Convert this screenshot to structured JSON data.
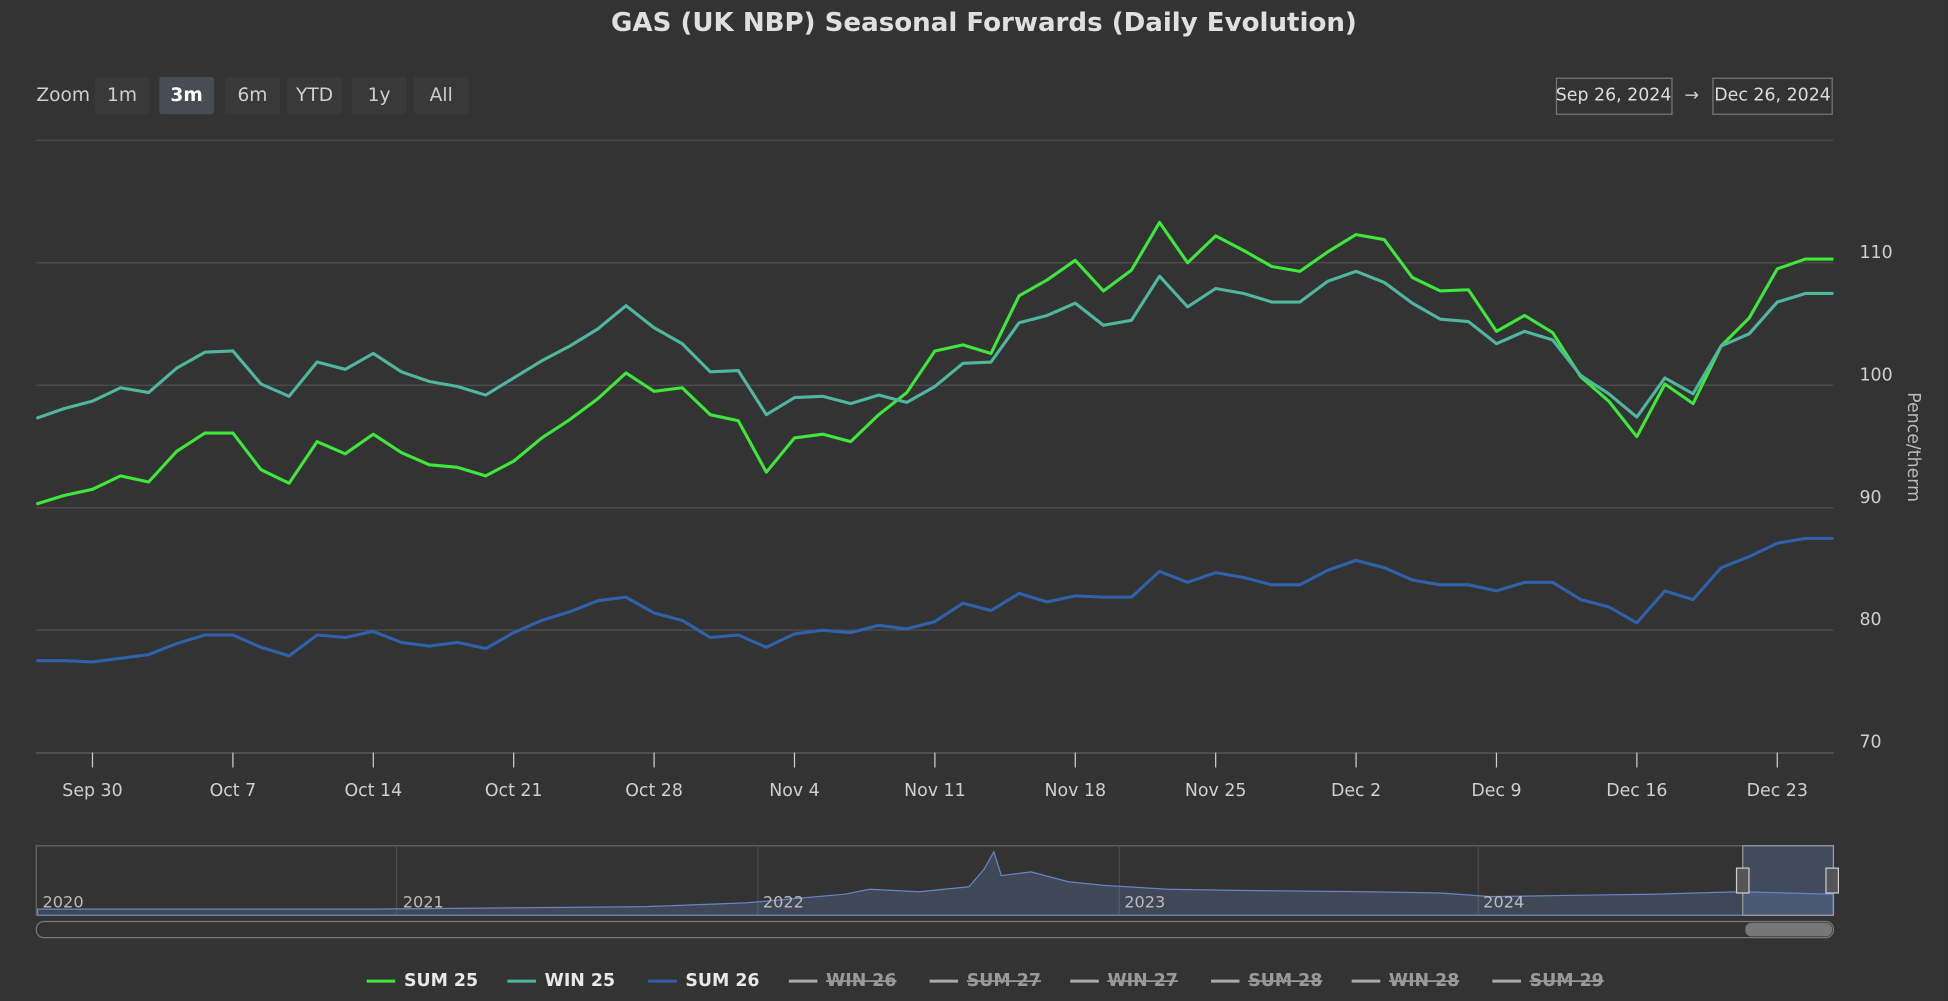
{
  "chart_data": {
    "type": "line",
    "title": "GAS (UK NBP) Seasonal Forwards (Daily Evolution)",
    "y_axis_label": "Pence/therm",
    "x": [
      "2024-09-26",
      "2024-09-27",
      "2024-09-30",
      "2024-10-01",
      "2024-10-02",
      "2024-10-03",
      "2024-10-04",
      "2024-10-07",
      "2024-10-08",
      "2024-10-09",
      "2024-10-10",
      "2024-10-11",
      "2024-10-14",
      "2024-10-15",
      "2024-10-16",
      "2024-10-17",
      "2024-10-18",
      "2024-10-21",
      "2024-10-22",
      "2024-10-23",
      "2024-10-24",
      "2024-10-25",
      "2024-10-28",
      "2024-10-29",
      "2024-10-30",
      "2024-10-31",
      "2024-11-01",
      "2024-11-04",
      "2024-11-05",
      "2024-11-06",
      "2024-11-07",
      "2024-11-08",
      "2024-11-11",
      "2024-11-12",
      "2024-11-13",
      "2024-11-14",
      "2024-11-15",
      "2024-11-18",
      "2024-11-19",
      "2024-11-20",
      "2024-11-21",
      "2024-11-22",
      "2024-11-25",
      "2024-11-26",
      "2024-11-27",
      "2024-11-28",
      "2024-11-29",
      "2024-12-02",
      "2024-12-03",
      "2024-12-04",
      "2024-12-05",
      "2024-12-06",
      "2024-12-09",
      "2024-12-10",
      "2024-12-11",
      "2024-12-12",
      "2024-12-13",
      "2024-12-16",
      "2024-12-17",
      "2024-12-18",
      "2024-12-19",
      "2024-12-20",
      "2024-12-23",
      "2024-12-24",
      "2024-12-26"
    ],
    "xticks": [
      {
        "value": "2024-09-30",
        "label": "Sep 30"
      },
      {
        "value": "2024-10-07",
        "label": "Oct 7"
      },
      {
        "value": "2024-10-14",
        "label": "Oct 14"
      },
      {
        "value": "2024-10-21",
        "label": "Oct 21"
      },
      {
        "value": "2024-10-28",
        "label": "Oct 28"
      },
      {
        "value": "2024-11-04",
        "label": "Nov 4"
      },
      {
        "value": "2024-11-11",
        "label": "Nov 11"
      },
      {
        "value": "2024-11-18",
        "label": "Nov 18"
      },
      {
        "value": "2024-11-25",
        "label": "Nov 25"
      },
      {
        "value": "2024-12-02",
        "label": "Dec 2"
      },
      {
        "value": "2024-12-09",
        "label": "Dec 9"
      },
      {
        "value": "2024-12-16",
        "label": "Dec 16"
      },
      {
        "value": "2024-12-23",
        "label": "Dec 23"
      }
    ],
    "ylim": [
      70,
      120
    ],
    "yticks": [
      70,
      80,
      90,
      100,
      110
    ],
    "grid": true,
    "series": [
      {
        "name": "SUM 25",
        "color": "#3ee83a",
        "visible": true,
        "values": [
          90.3,
          91.0,
          91.5,
          92.6,
          92.1,
          94.6,
          96.1,
          96.1,
          93.1,
          92.0,
          95.4,
          94.4,
          96.0,
          94.5,
          93.5,
          93.3,
          92.6,
          93.8,
          95.7,
          97.2,
          98.9,
          101.0,
          99.5,
          99.8,
          97.6,
          97.1,
          92.9,
          95.7,
          96.0,
          95.4,
          97.6,
          99.4,
          102.8,
          103.3,
          102.6,
          107.3,
          108.6,
          110.2,
          107.7,
          109.4,
          113.3,
          110.0,
          112.2,
          111.0,
          109.7,
          109.3,
          110.9,
          112.3,
          111.9,
          108.8,
          107.7,
          107.8,
          104.4,
          105.7,
          104.3,
          100.7,
          98.7,
          95.8,
          100.1,
          98.5,
          103.2,
          105.5,
          109.5,
          110.3,
          110.3
        ]
      },
      {
        "name": "WIN 25",
        "color": "#4fb7a0",
        "visible": true,
        "values": [
          97.3,
          98.1,
          98.7,
          99.8,
          99.4,
          101.4,
          102.7,
          102.8,
          100.1,
          99.1,
          101.9,
          101.3,
          102.6,
          101.1,
          100.3,
          99.9,
          99.2,
          100.6,
          102.0,
          103.2,
          104.6,
          106.5,
          104.7,
          103.4,
          101.1,
          101.2,
          97.6,
          99.0,
          99.1,
          98.5,
          99.2,
          98.6,
          99.9,
          101.8,
          101.9,
          105.1,
          105.7,
          106.7,
          104.9,
          105.3,
          108.9,
          106.4,
          107.9,
          107.5,
          106.8,
          106.8,
          108.5,
          109.3,
          108.4,
          106.7,
          105.4,
          105.2,
          103.4,
          104.4,
          103.7,
          100.8,
          99.3,
          97.4,
          100.6,
          99.3,
          103.2,
          104.2,
          106.8,
          107.5,
          107.5
        ]
      },
      {
        "name": "SUM 26",
        "color": "#2f62aa",
        "visible": true,
        "values": [
          77.5,
          77.5,
          77.4,
          77.7,
          78.0,
          78.9,
          79.6,
          79.6,
          78.6,
          77.9,
          79.6,
          79.4,
          79.9,
          79.0,
          78.7,
          79.0,
          78.5,
          79.8,
          80.8,
          81.5,
          82.4,
          82.7,
          81.4,
          80.8,
          79.4,
          79.6,
          78.6,
          79.7,
          80.0,
          79.8,
          80.4,
          80.1,
          80.7,
          82.2,
          81.6,
          83.0,
          82.3,
          82.8,
          82.7,
          82.7,
          84.8,
          83.9,
          84.7,
          84.3,
          83.7,
          83.7,
          84.9,
          85.7,
          85.1,
          84.1,
          83.7,
          83.7,
          83.2,
          83.9,
          83.9,
          82.5,
          81.9,
          80.6,
          83.2,
          82.5,
          85.1,
          86.0,
          87.1,
          87.5,
          87.5
        ]
      },
      {
        "name": "WIN 26",
        "visible": false
      },
      {
        "name": "SUM 27",
        "visible": false
      },
      {
        "name": "WIN 27",
        "visible": false
      },
      {
        "name": "SUM 28",
        "visible": false
      },
      {
        "name": "WIN 28",
        "visible": false
      },
      {
        "name": "SUM 29",
        "visible": false
      }
    ]
  },
  "range_selector": {
    "label": "Zoom",
    "buttons": [
      "1m",
      "3m",
      "6m",
      "YTD",
      "1y",
      "All"
    ],
    "selected": 1
  },
  "date_range": {
    "from": "Sep 26, 2024",
    "arrow": "→",
    "to": "Dec 26, 2024"
  },
  "navigator": {
    "years": [
      "2020",
      "2021",
      "2022",
      "2023",
      "2024"
    ]
  }
}
